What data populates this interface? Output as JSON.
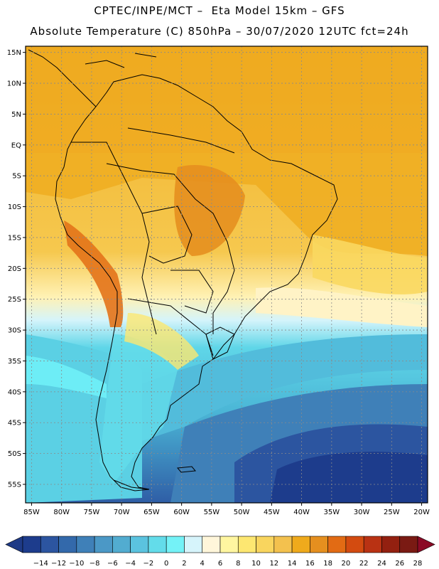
{
  "header": {
    "title_line1": "CPTEC/INPE/MCT –  Eta Model 15km – GFS",
    "title_line2": "Absolute Temperature (C) 850hPa – 30/07/2020 12UTC fct=24h"
  },
  "map": {
    "lon_range": [
      -86,
      -19
    ],
    "lat_range": [
      -58,
      16
    ],
    "lat_labels": [
      "15N",
      "10N",
      "5N",
      "EQ",
      "5S",
      "10S",
      "15S",
      "20S",
      "25S",
      "30S",
      "35S",
      "40S",
      "45S",
      "50S",
      "55S"
    ],
    "lat_values": [
      15,
      10,
      5,
      0,
      -5,
      -10,
      -15,
      -20,
      -25,
      -30,
      -35,
      -40,
      -45,
      -50,
      -55
    ],
    "lon_labels": [
      "85W",
      "80W",
      "75W",
      "70W",
      "65W",
      "60W",
      "55W",
      "50W",
      "45W",
      "40W",
      "35W",
      "30W",
      "25W",
      "20W"
    ],
    "lon_values": [
      -85,
      -80,
      -75,
      -70,
      -65,
      -60,
      -55,
      -50,
      -45,
      -40,
      -35,
      -30,
      -25,
      -20
    ]
  },
  "colorbar": {
    "levels": [
      "−14",
      "−12",
      "−10",
      "−8",
      "−6",
      "−4",
      "−2",
      "0",
      "2",
      "4",
      "6",
      "8",
      "10",
      "12",
      "14",
      "16",
      "18",
      "20",
      "22",
      "24",
      "26",
      "28"
    ],
    "colors": [
      "#1d3c8c",
      "#2c55a0",
      "#3369ab",
      "#3f80b8",
      "#4b98c6",
      "#52acd0",
      "#5bc3df",
      "#63dcea",
      "#74f2f7",
      "#d6f4fb",
      "#fff6da",
      "#fff6a0",
      "#fde771",
      "#f9d55e",
      "#f3c14e",
      "#efaa1c",
      "#e58f1f",
      "#e26b14",
      "#d34b10",
      "#b93213",
      "#932010",
      "#7a1a13"
    ],
    "under_color": "#1e3a86",
    "over_color": "#8b0a25"
  }
}
